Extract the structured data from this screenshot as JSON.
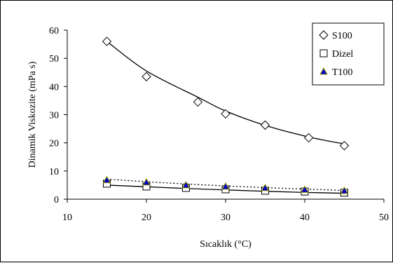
{
  "chart_data": {
    "type": "scatter",
    "title": "",
    "xlabel": "Sıcaklık (°C)",
    "ylabel": "Dinamik Viskozite (mPa s)",
    "xlim": [
      10,
      50
    ],
    "ylim": [
      0,
      60
    ],
    "xticks": [
      10,
      20,
      30,
      40,
      50
    ],
    "yticks": [
      0,
      10,
      20,
      30,
      40,
      50,
      60
    ],
    "grid": false,
    "legend_position": "top-right",
    "series": [
      {
        "name": "S100",
        "marker": "diamond",
        "marker_fill": "#ffffff",
        "marker_stroke": "#000000",
        "x": [
          15,
          20,
          26.5,
          30,
          35,
          40.5,
          45
        ],
        "y": [
          56,
          43.5,
          34.5,
          30.3,
          26.3,
          21.8,
          19
        ],
        "trendline": {
          "style": "solid",
          "color": "#000000",
          "y": [
            56,
            45.5,
            36.2,
            31.3,
            26.2,
            22.1,
            19.6
          ]
        }
      },
      {
        "name": "Dizel",
        "marker": "square",
        "marker_fill": "#ffffff",
        "marker_stroke": "#000000",
        "x": [
          15,
          20,
          25,
          30,
          35,
          40,
          45
        ],
        "y": [
          5.5,
          4.5,
          4,
          3.5,
          3,
          2.7,
          2.3
        ],
        "trendline": {
          "style": "solid",
          "color": "#000000",
          "y": [
            5.0,
            4.4,
            3.8,
            3.3,
            2.8,
            2.4,
            2.1
          ]
        }
      },
      {
        "name": "T100",
        "marker": "triangle",
        "marker_fill": "#0000cc",
        "marker_stroke": "#999900",
        "x": [
          15,
          20,
          25,
          30,
          35,
          40,
          45
        ],
        "y": [
          6.8,
          6,
          5,
          4.5,
          4,
          3.4,
          3
        ],
        "trendline": {
          "style": "dotted",
          "color": "#000000",
          "y": [
            7.1,
            6.2,
            5.4,
            4.7,
            4.1,
            3.6,
            3.1
          ]
        }
      }
    ]
  }
}
